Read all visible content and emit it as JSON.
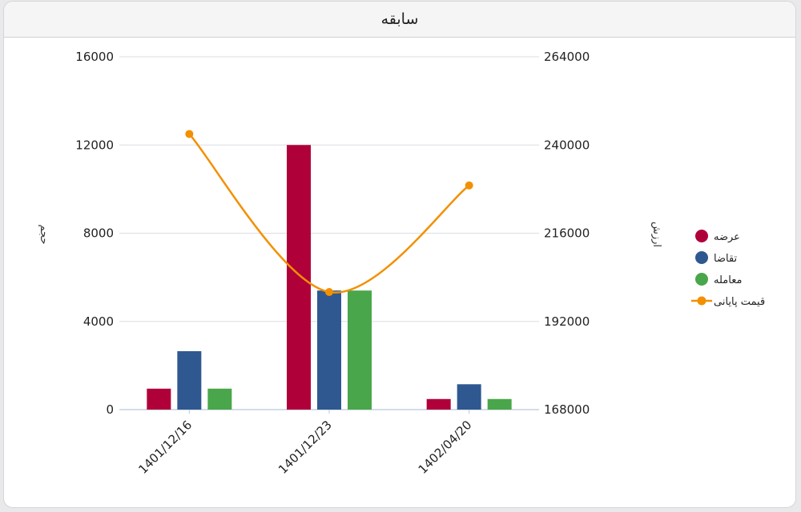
{
  "panel": {
    "title": "سابقه"
  },
  "chart_data": {
    "type": "bar",
    "categories": [
      "1401/12/16",
      "1401/12/23",
      "1402/04/20"
    ],
    "series": [
      {
        "name": "عرضه",
        "kind": "bar",
        "axis": "left",
        "color": "#b0003a",
        "values": [
          950,
          12000,
          480
        ]
      },
      {
        "name": "تقاضا",
        "kind": "bar",
        "axis": "left",
        "color": "#2f5891",
        "values": [
          2650,
          5400,
          1150
        ]
      },
      {
        "name": "معامله",
        "kind": "bar",
        "axis": "left",
        "color": "#4aa64a",
        "values": [
          950,
          5400,
          480
        ]
      },
      {
        "name": "قیمت پایانی",
        "kind": "line",
        "axis": "right",
        "color": "#f39000",
        "values": [
          243000,
          200000,
          229000
        ]
      }
    ],
    "left_axis": {
      "label": "حجم",
      "ylim": [
        0,
        16000
      ],
      "ticks": [
        "0",
        "4000",
        "8000",
        "12000",
        "16000"
      ]
    },
    "right_axis": {
      "label": "ارزش",
      "ylim": [
        168000,
        264000
      ],
      "ticks": [
        "168000",
        "192000",
        "216000",
        "240000",
        "264000"
      ]
    },
    "grid": true,
    "legend_position": "right"
  }
}
